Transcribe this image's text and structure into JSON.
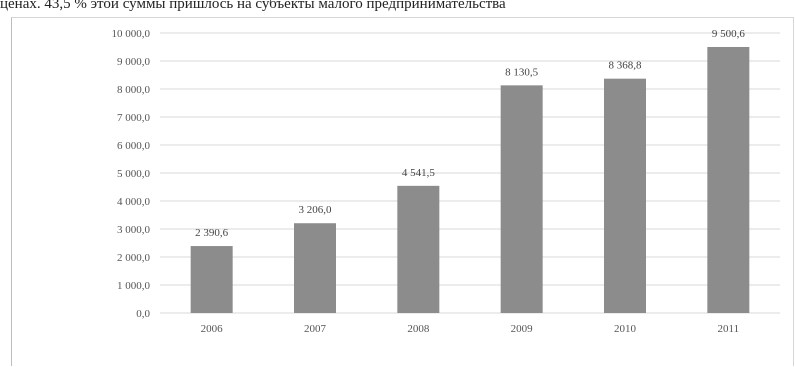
{
  "header_text": "ценах. 43,5 % этой суммы пришлось на субъекты малого предпринимательства",
  "chart_data": {
    "type": "bar",
    "categories": [
      "2006",
      "2007",
      "2008",
      "2009",
      "2010",
      "2011"
    ],
    "values": [
      2390.6,
      3206.0,
      4541.5,
      8130.5,
      8368.8,
      9500.6
    ],
    "value_labels": [
      "2 390,6",
      "3 206,0",
      "4 541,5",
      "8 130,5",
      "8 368,8",
      "9 500,6"
    ],
    "title": "",
    "xlabel": "",
    "ylabel": "",
    "ylim": [
      0,
      10000
    ],
    "yticks": [
      0,
      1000,
      2000,
      3000,
      4000,
      5000,
      6000,
      7000,
      8000,
      9000,
      10000
    ],
    "ytick_labels": [
      "0,0",
      "1 000,0",
      "2 000,0",
      "3 000,0",
      "4 000,0",
      "5 000,0",
      "6 000,0",
      "7 000,0",
      "8 000,0",
      "9 000,0",
      "10 000,0"
    ],
    "grid": true,
    "legend": "none",
    "bar_color": "#8c8c8c",
    "grid_color": "#d9d9d9"
  }
}
